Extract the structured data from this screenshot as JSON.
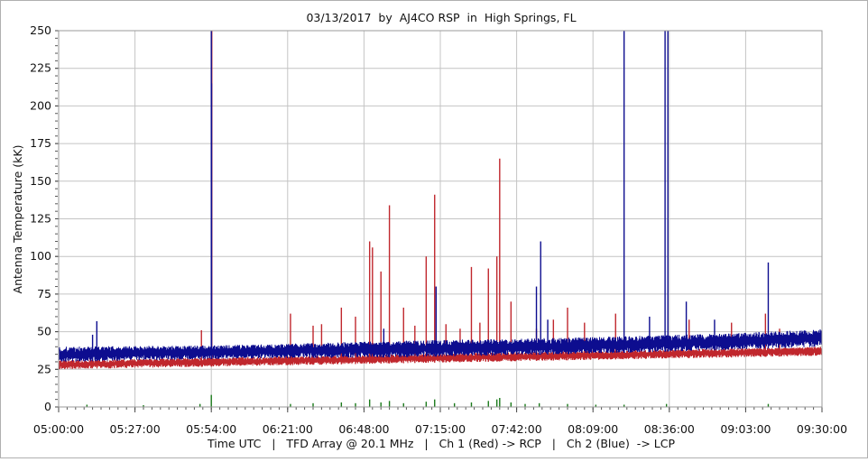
{
  "chart_data": {
    "type": "line",
    "title": "03/13/2017  by  AJ4CO RSP  in  High Springs, FL",
    "xlabel": "Time UTC   |   TFD Array @ 20.1 MHz   |   Ch 1 (Red) -> RCP   |   Ch 2 (Blue)  -> LCP",
    "ylabel": "Antenna Temperature (kK)",
    "xlim": [
      "05:00:00",
      "09:30:00"
    ],
    "ylim": [
      0,
      250
    ],
    "x_ticks": [
      "05:00:00",
      "05:27:00",
      "05:54:00",
      "06:21:00",
      "06:48:00",
      "07:15:00",
      "07:42:00",
      "08:09:00",
      "08:36:00",
      "09:03:00",
      "09:30:00"
    ],
    "y_ticks": [
      "0",
      "25",
      "50",
      "75",
      "100",
      "125",
      "150",
      "175",
      "200",
      "225",
      "250"
    ],
    "grid": true,
    "series": [
      {
        "name": "Ch 1 (Red) -> RCP",
        "color": "#c0272d",
        "baseline": {
          "x": [
            "05:00:00",
            "06:00:00",
            "07:00:00",
            "08:00:00",
            "09:00:00",
            "09:30:00"
          ],
          "low": [
            25,
            27,
            29,
            31,
            33,
            34
          ],
          "high": [
            31,
            33,
            35,
            37,
            39,
            40
          ]
        },
        "spikes": [
          {
            "x": "05:50:30",
            "y": 51
          },
          {
            "x": "05:54:00",
            "y": 250
          },
          {
            "x": "05:54:10",
            "y": 250
          },
          {
            "x": "06:22:00",
            "y": 62
          },
          {
            "x": "06:30:00",
            "y": 54
          },
          {
            "x": "06:33:00",
            "y": 55
          },
          {
            "x": "06:40:00",
            "y": 66
          },
          {
            "x": "06:45:00",
            "y": 60
          },
          {
            "x": "06:50:00",
            "y": 110
          },
          {
            "x": "06:51:00",
            "y": 106
          },
          {
            "x": "06:54:00",
            "y": 90
          },
          {
            "x": "06:57:00",
            "y": 134
          },
          {
            "x": "07:02:00",
            "y": 66
          },
          {
            "x": "07:06:00",
            "y": 54
          },
          {
            "x": "07:10:00",
            "y": 100
          },
          {
            "x": "07:13:00",
            "y": 141
          },
          {
            "x": "07:17:00",
            "y": 55
          },
          {
            "x": "07:22:00",
            "y": 52
          },
          {
            "x": "07:26:00",
            "y": 93
          },
          {
            "x": "07:29:00",
            "y": 56
          },
          {
            "x": "07:32:00",
            "y": 92
          },
          {
            "x": "07:35:00",
            "y": 100
          },
          {
            "x": "07:36:00",
            "y": 165
          },
          {
            "x": "07:40:00",
            "y": 70
          },
          {
            "x": "07:49:00",
            "y": 52
          },
          {
            "x": "07:55:00",
            "y": 58
          },
          {
            "x": "08:00:00",
            "y": 66
          },
          {
            "x": "08:06:00",
            "y": 56
          },
          {
            "x": "08:17:00",
            "y": 62
          },
          {
            "x": "08:43:00",
            "y": 58
          },
          {
            "x": "08:58:00",
            "y": 56
          },
          {
            "x": "09:10:00",
            "y": 62
          },
          {
            "x": "09:15:00",
            "y": 52
          }
        ]
      },
      {
        "name": "Ch 2 (Blue)  -> LCP",
        "color": "#0d0d8f",
        "baseline": {
          "x": [
            "05:00:00",
            "06:00:00",
            "07:00:00",
            "08:00:00",
            "09:00:00",
            "09:30:00"
          ],
          "low": [
            30,
            32,
            33,
            35,
            38,
            40
          ],
          "high": [
            40,
            41,
            44,
            46,
            49,
            52
          ]
        },
        "spikes": [
          {
            "x": "05:12:00",
            "y": 48
          },
          {
            "x": "05:13:30",
            "y": 57
          },
          {
            "x": "05:54:00",
            "y": 250
          },
          {
            "x": "05:54:05",
            "y": 215
          },
          {
            "x": "06:55:00",
            "y": 52
          },
          {
            "x": "07:13:30",
            "y": 80
          },
          {
            "x": "07:49:00",
            "y": 80
          },
          {
            "x": "07:50:30",
            "y": 110
          },
          {
            "x": "07:53:00",
            "y": 58
          },
          {
            "x": "08:20:00",
            "y": 250
          },
          {
            "x": "08:29:00",
            "y": 60
          },
          {
            "x": "08:34:30",
            "y": 250
          },
          {
            "x": "08:35:30",
            "y": 250
          },
          {
            "x": "08:42:00",
            "y": 70
          },
          {
            "x": "08:52:00",
            "y": 58
          },
          {
            "x": "09:11:00",
            "y": 96
          }
        ]
      },
      {
        "name": "",
        "color": "#1a7a1a",
        "baseline": {
          "x": [
            "05:00:00",
            "09:30:00"
          ],
          "low": [
            0,
            0
          ],
          "high": [
            0,
            0
          ]
        },
        "spikes": [
          {
            "x": "05:10:00",
            "y": 1.5
          },
          {
            "x": "05:30:00",
            "y": 1.2
          },
          {
            "x": "05:50:00",
            "y": 2
          },
          {
            "x": "05:54:00",
            "y": 8
          },
          {
            "x": "06:22:00",
            "y": 2
          },
          {
            "x": "06:30:00",
            "y": 2.5
          },
          {
            "x": "06:40:00",
            "y": 3
          },
          {
            "x": "06:45:00",
            "y": 2.5
          },
          {
            "x": "06:50:00",
            "y": 5
          },
          {
            "x": "06:54:00",
            "y": 3
          },
          {
            "x": "06:57:00",
            "y": 4
          },
          {
            "x": "07:02:00",
            "y": 2.5
          },
          {
            "x": "07:10:00",
            "y": 3.5
          },
          {
            "x": "07:13:00",
            "y": 5
          },
          {
            "x": "07:20:00",
            "y": 2.5
          },
          {
            "x": "07:26:00",
            "y": 3
          },
          {
            "x": "07:32:00",
            "y": 4
          },
          {
            "x": "07:35:00",
            "y": 5
          },
          {
            "x": "07:36:00",
            "y": 6
          },
          {
            "x": "07:40:00",
            "y": 3
          },
          {
            "x": "07:45:00",
            "y": 2
          },
          {
            "x": "07:50:00",
            "y": 2.5
          },
          {
            "x": "08:00:00",
            "y": 2
          },
          {
            "x": "08:10:00",
            "y": 1.5
          },
          {
            "x": "08:20:00",
            "y": 1.5
          },
          {
            "x": "08:35:00",
            "y": 2
          },
          {
            "x": "09:11:00",
            "y": 2
          }
        ]
      }
    ]
  }
}
